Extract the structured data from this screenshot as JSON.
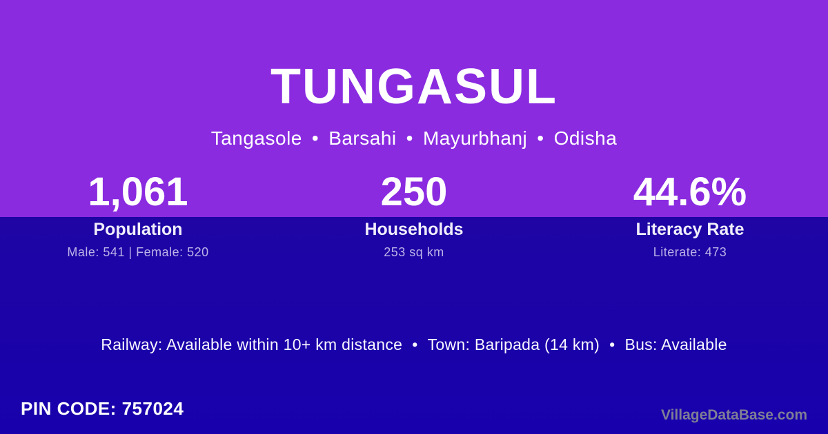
{
  "theme": {
    "purple_bg": "#8A2BE0",
    "indigo_bg": "#1B03A8",
    "text_primary": "#FFFFFF",
    "text_muted_lavender": "#BDB3E8",
    "watermark_gray": "#7F7F95"
  },
  "header": {
    "village_name": "TUNGASUL",
    "breadcrumb": {
      "separator": "•",
      "parts": [
        "Tangasole",
        "Barsahi",
        "Mayurbhanj",
        "Odisha"
      ]
    }
  },
  "stats": [
    {
      "value": "1,061",
      "label": "Population",
      "detail": "Male: 541 | Female: 520"
    },
    {
      "value": "250",
      "label": "Households",
      "detail": "253 sq km"
    },
    {
      "value": "44.6%",
      "label": "Literacy Rate",
      "detail": "Literate: 473"
    }
  ],
  "amenities": {
    "separator": "•",
    "items": [
      "Railway: Available within 10+ km distance",
      "Town: Baripada (14 km)",
      "Bus: Available"
    ]
  },
  "footer": {
    "pin_code_label": "PIN CODE:",
    "pin_code_value": "757024",
    "watermark": "VillageDataBase.com"
  }
}
